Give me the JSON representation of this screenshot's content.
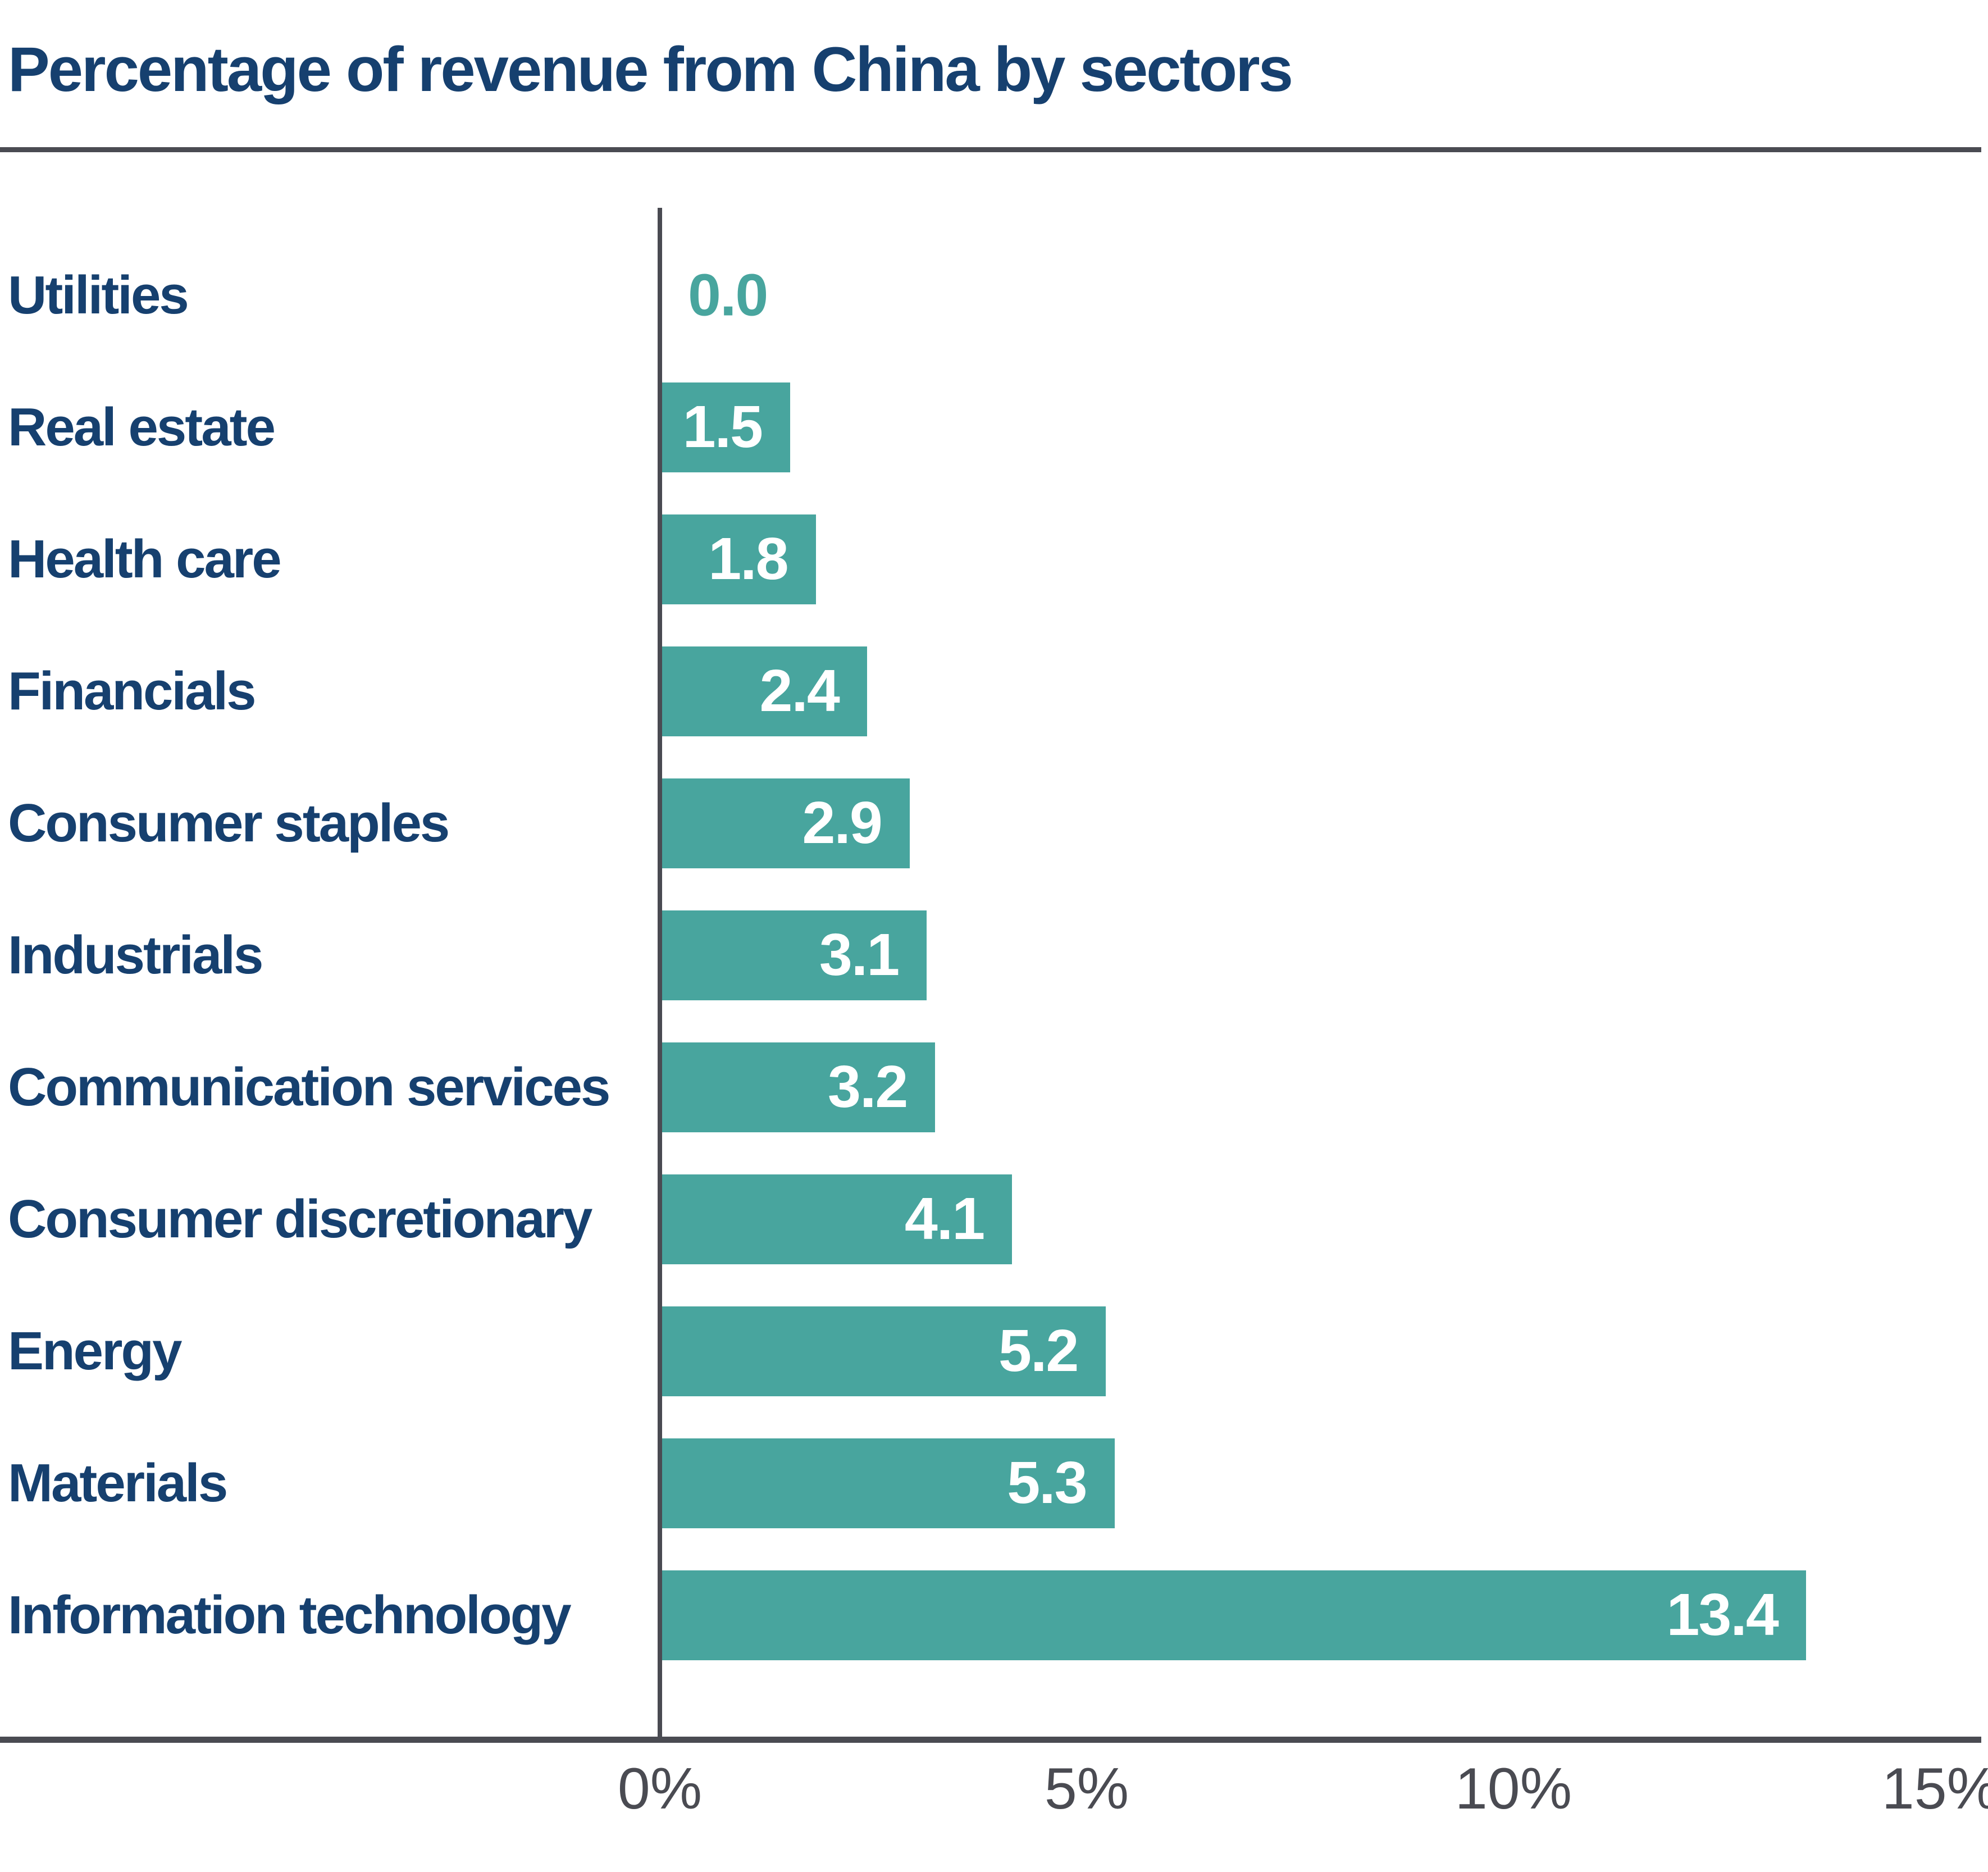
{
  "chart_data": {
    "type": "bar",
    "orientation": "horizontal",
    "title": "Percentage of revenue from China by sectors",
    "xlabel": "",
    "ylabel": "",
    "xlim": [
      0,
      15
    ],
    "grid": false,
    "legend": false,
    "categories": [
      "Utilities",
      "Real estate",
      "Health care",
      "Financials",
      "Consumer staples",
      "Industrials",
      "Communication services",
      "Consumer discretionary",
      "Energy",
      "Materials",
      "Information technology"
    ],
    "values": [
      0.0,
      1.5,
      1.8,
      2.4,
      2.9,
      3.1,
      3.2,
      4.1,
      5.2,
      5.3,
      13.4
    ],
    "value_labels": [
      "0.0",
      "1.5",
      "1.8",
      "2.4",
      "2.9",
      "3.1",
      "3.2",
      "4.1",
      "5.2",
      "5.3",
      "13.4"
    ],
    "x_axis": {
      "ticks": [
        {
          "label": "0%",
          "value": 0
        },
        {
          "label": "5%",
          "value": 5
        },
        {
          "label": "10%",
          "value": 10
        },
        {
          "label": "15%",
          "value": 15
        }
      ]
    },
    "colors": {
      "bar": "#48a59e",
      "title": "#16406f",
      "category_label": "#16406f",
      "value_label_inside": "#ffffff",
      "value_label_zero": "#48a59e",
      "axis": "#4a4b52",
      "background": "#ffffff"
    }
  }
}
